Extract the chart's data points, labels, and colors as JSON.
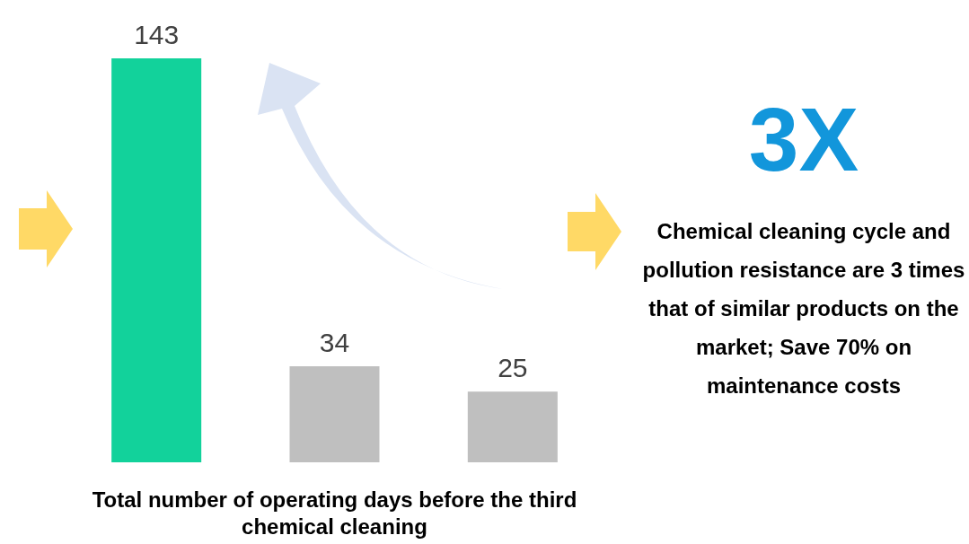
{
  "chart_data": {
    "type": "bar",
    "categories": [
      null,
      null,
      null
    ],
    "values": [
      143,
      34,
      25
    ],
    "colors": [
      "#12d29b",
      "#bfbfbf",
      "#bfbfbf"
    ],
    "data_labels": true,
    "xlabel": "Total number of operating days before the third chemical cleaning",
    "annotations": [
      "3X",
      "Chemical cleaning cycle and pollution resistance are 3 times that of similar products on the market; Save 70% on maintenance costs"
    ]
  }
}
